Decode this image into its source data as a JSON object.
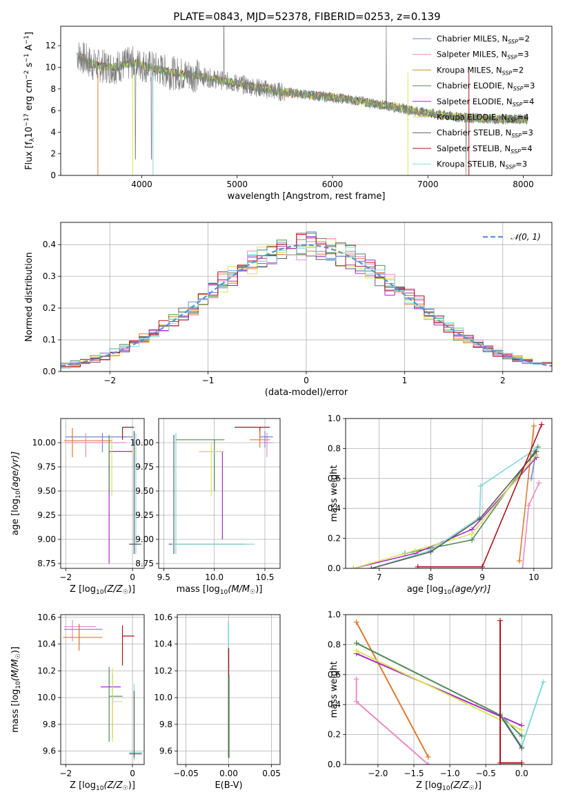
{
  "figure_title": "PLATE=0843, MJD=52378, FIBERID=0253, z=0.139",
  "colors": {
    "Chabrier MILES": "#6f86d6",
    "Salpeter MILES": "#e98ac1",
    "Kroupa MILES": "#c8912c",
    "Chabrier ELODIE": "#4f8a55",
    "Salpeter ELODIE": "#a829c4",
    "Kroupa ELODIE": "#d8e45a",
    "Chabrier STELIB": "#5a5a5a",
    "Salpeter STELIB": "#b0101a",
    "Kroupa STELIB": "#7fd8d8",
    "data": "#7f7f7f",
    "normal": "#5b8fd0",
    "orange": "#e0782e"
  },
  "chart_data": [
    {
      "id": "spectrum",
      "type": "line",
      "xlabel": "wavelength [Angstrom, rest frame]",
      "ylabel": "Flux [f_λ10^-17 erg cm^-2 s^-1 A^-1]",
      "xlim": [
        3150,
        8300
      ],
      "ylim": [
        0,
        13.8
      ],
      "xticks": [
        4000,
        5000,
        6000,
        7000,
        8000
      ],
      "yticks": [
        0,
        2,
        4,
        6,
        8,
        10,
        12
      ],
      "grid": false,
      "legend_position": "top-right",
      "legend": [
        {
          "name": "Chabrier MILES",
          "nssp": "2"
        },
        {
          "name": "Salpeter MILES",
          "nssp": "3"
        },
        {
          "name": "Kroupa MILES",
          "nssp": "2"
        },
        {
          "name": "Chabrier ELODIE",
          "nssp": "3"
        },
        {
          "name": "Salpeter ELODIE",
          "nssp": "4"
        },
        {
          "name": "Kroupa ELODIE",
          "nssp": "4"
        },
        {
          "name": "Chabrier STELIB",
          "nssp": "3"
        },
        {
          "name": "Salpeter STELIB",
          "nssp": "4"
        },
        {
          "name": "Kroupa STELIB",
          "nssp": "3"
        }
      ],
      "continuum": [
        [
          3320,
          11.2
        ],
        [
          3500,
          10.2
        ],
        [
          3700,
          10.0
        ],
        [
          3900,
          10.4
        ],
        [
          4100,
          10.0
        ],
        [
          4300,
          9.5
        ],
        [
          4600,
          9.2
        ],
        [
          5000,
          8.5
        ],
        [
          5400,
          7.8
        ],
        [
          5800,
          7.4
        ],
        [
          6200,
          7.0
        ],
        [
          6600,
          6.4
        ],
        [
          6900,
          5.9
        ],
        [
          7300,
          5.4
        ],
        [
          7700,
          5.2
        ],
        [
          8050,
          5.2
        ]
      ]
    },
    {
      "id": "residuals",
      "type": "line",
      "xlabel": "(data-model)/error",
      "ylabel": "Normed distribution",
      "xlim": [
        -2.5,
        2.5
      ],
      "ylim": [
        0,
        0.47
      ],
      "xticks": [
        -2,
        -1,
        0,
        1,
        2
      ],
      "yticks": [
        0.0,
        0.1,
        0.2,
        0.3,
        0.4
      ],
      "grid": true,
      "legend_position": "top-right",
      "legend_label": "𝒩(0, 1)"
    },
    {
      "id": "age_vs_Z",
      "type": "scatter",
      "xlabel": "Z [log10(Z/Z☉)]",
      "ylabel": "age [log10(age/yr)]",
      "xlim": [
        -2.15,
        0.35
      ],
      "ylim": [
        8.7,
        10.25
      ],
      "xticks": [
        -2,
        0
      ],
      "yticks": [
        8.75,
        9.0,
        9.25,
        9.5,
        9.75,
        10.0
      ],
      "grid": true,
      "points": [
        {
          "series": "Chabrier MILES",
          "x": -0.9,
          "y": 10.06,
          "xe": [
            -2.0,
            0.0
          ],
          "ye": [
            9.9,
            10.1
          ]
        },
        {
          "series": "Kroupa MILES",
          "x": -1.8,
          "y": 10.02,
          "xe": [
            -2.05,
            -0.6
          ],
          "ye": [
            9.85,
            10.15
          ]
        },
        {
          "series": "Salpeter MILES",
          "x": -1.4,
          "y": 10.0,
          "xe": [
            -2.02,
            -0.2
          ],
          "ye": [
            9.85,
            10.1
          ]
        },
        {
          "series": "Salpeter STELIB",
          "x": -0.3,
          "y": 10.16,
          "xe": [
            -0.3,
            0.05
          ],
          "ye": [
            10.03,
            10.16
          ]
        },
        {
          "series": "Salpeter ELODIE",
          "x": -0.7,
          "y": 9.91,
          "xe": [
            -0.7,
            0.0
          ],
          "ye": [
            8.75,
            9.91
          ]
        },
        {
          "series": "Chabrier ELODIE",
          "x": -0.7,
          "y": 9.91,
          "xe": [
            -0.7,
            -0.7
          ],
          "ye": [
            9.5,
            10.08
          ]
        },
        {
          "series": "Kroupa ELODIE",
          "x": -0.62,
          "y": 9.91,
          "xe": [
            -0.62,
            -0.62
          ],
          "ye": [
            9.45,
            10.05
          ]
        },
        {
          "series": "Kroupa STELIB",
          "x": 0.1,
          "y": 8.95,
          "xe": [
            -0.1,
            0.3
          ],
          "ye": [
            8.85,
            10.1
          ]
        },
        {
          "series": "Chabrier STELIB",
          "x": 0.05,
          "y": 8.95,
          "xe": [
            -0.1,
            0.25
          ],
          "ye": [
            8.85,
            10.12
          ]
        }
      ]
    },
    {
      "id": "age_vs_mass",
      "type": "scatter",
      "xlabel": "mass [log10(M/M☉)]",
      "ylabel": "",
      "xlim": [
        9.45,
        10.65
      ],
      "ylim": [
        8.7,
        10.25
      ],
      "xticks": [
        9.5,
        10.0,
        10.5
      ],
      "yticks": [
        8.75,
        9.0,
        9.25,
        9.5,
        9.75,
        10.0
      ],
      "grid": true,
      "points": [
        {
          "series": "Chabrier STELIB",
          "x": 9.6,
          "y": 8.95,
          "xe": [
            9.55,
            10.3
          ],
          "ye": [
            8.85,
            10.08
          ]
        },
        {
          "series": "Kroupa STELIB",
          "x": 9.62,
          "y": 8.95,
          "xe": [
            9.58,
            10.4
          ],
          "ye": [
            8.85,
            10.1
          ]
        },
        {
          "series": "Chabrier ELODIE",
          "x": 10.0,
          "y": 10.03,
          "xe": [
            9.62,
            10.1
          ],
          "ye": [
            9.5,
            10.03
          ]
        },
        {
          "series": "Salpeter ELODIE",
          "x": 10.08,
          "y": 9.91,
          "xe": [
            9.85,
            10.08
          ],
          "ye": [
            9.0,
            9.91
          ]
        },
        {
          "series": "Kroupa ELODIE",
          "x": 9.97,
          "y": 9.91,
          "xe": [
            9.85,
            10.1
          ],
          "ye": [
            9.45,
            10.0
          ]
        },
        {
          "series": "Salpeter STELIB",
          "x": 10.45,
          "y": 10.16,
          "xe": [
            10.2,
            10.55
          ],
          "ye": [
            10.05,
            10.16
          ]
        },
        {
          "series": "Kroupa MILES",
          "x": 10.45,
          "y": 10.03,
          "xe": [
            10.35,
            10.55
          ],
          "ye": [
            9.95,
            10.12
          ]
        },
        {
          "series": "Salpeter MILES",
          "x": 10.52,
          "y": 10.0,
          "xe": [
            10.45,
            10.58
          ],
          "ye": [
            9.85,
            10.1
          ]
        },
        {
          "series": "Chabrier MILES",
          "x": 10.5,
          "y": 10.06,
          "xe": [
            10.45,
            10.58
          ],
          "ye": [
            9.95,
            10.12
          ]
        }
      ]
    },
    {
      "id": "mass_weight_vs_age",
      "type": "line",
      "xlabel": "age [log10(age/yr)]",
      "ylabel": "mass weight",
      "xlim": [
        6.35,
        10.35
      ],
      "ylim": [
        0,
        1.0
      ],
      "xticks": [
        7,
        8,
        9,
        10
      ],
      "yticks": [
        0.0,
        0.2,
        0.4,
        0.6,
        0.8,
        1.0
      ],
      "grid": true,
      "series": [
        {
          "name": "Kroupa MILES",
          "points": [
            [
              9.72,
              0.05
            ],
            [
              10.0,
              0.95
            ]
          ]
        },
        {
          "name": "Salpeter MILES",
          "points": [
            [
              9.78,
              0.0
            ],
            [
              9.9,
              0.42
            ],
            [
              10.1,
              0.57
            ]
          ]
        },
        {
          "name": "Chabrier MILES",
          "points": [
            [
              9.95,
              0.6
            ],
            [
              10.03,
              0.75
            ]
          ]
        },
        {
          "name": "Chabrier ELODIE",
          "points": [
            [
              7.5,
              0.1
            ],
            [
              8.8,
              0.19
            ],
            [
              10.08,
              0.81
            ]
          ]
        },
        {
          "name": "Salpeter ELODIE",
          "points": [
            [
              6.5,
              0.0
            ],
            [
              7.7,
              0.1
            ],
            [
              8.8,
              0.26
            ],
            [
              10.05,
              0.74
            ]
          ]
        },
        {
          "name": "Kroupa ELODIE",
          "points": [
            [
              6.5,
              0.0
            ],
            [
              7.7,
              0.12
            ],
            [
              8.8,
              0.23
            ],
            [
              10.05,
              0.76
            ]
          ]
        },
        {
          "name": "Kroupa STELIB",
          "points": [
            [
              6.85,
              0.0
            ],
            [
              8.0,
              0.12
            ],
            [
              8.95,
              0.34
            ],
            [
              8.97,
              0.55
            ],
            [
              10.05,
              0.8
            ]
          ]
        },
        {
          "name": "Chabrier STELIB",
          "points": [
            [
              6.85,
              0.0
            ],
            [
              8.0,
              0.11
            ],
            [
              8.95,
              0.33
            ],
            [
              10.05,
              0.78
            ]
          ]
        },
        {
          "name": "Salpeter STELIB",
          "points": [
            [
              7.75,
              0.01
            ],
            [
              9.0,
              0.01
            ],
            [
              10.15,
              0.96
            ]
          ]
        }
      ]
    },
    {
      "id": "mass_vs_Z",
      "type": "scatter",
      "xlabel": "Z [log10(Z/Z☉)]",
      "ylabel": "mass [log10(M/M☉)]",
      "xlim": [
        -2.15,
        0.35
      ],
      "ylim": [
        9.5,
        10.62
      ],
      "xticks": [
        -2,
        0
      ],
      "yticks": [
        9.6,
        9.8,
        10.0,
        10.2,
        10.4,
        10.6
      ],
      "grid": true,
      "points": [
        {
          "series": "Salpeter MILES",
          "x": -1.8,
          "y": 10.53,
          "xe": [
            -2.05,
            -1.1
          ],
          "ye": [
            10.42,
            10.58
          ]
        },
        {
          "series": "Chabrier MILES",
          "x": -1.6,
          "y": 10.51,
          "xe": [
            -2.05,
            -0.9
          ],
          "ye": [
            10.4,
            10.55
          ]
        },
        {
          "series": "Kroupa MILES",
          "x": -1.6,
          "y": 10.45,
          "xe": [
            -2.08,
            -0.9
          ],
          "ye": [
            10.35,
            10.55
          ]
        },
        {
          "series": "Salpeter STELIB",
          "x": -0.3,
          "y": 10.46,
          "xe": [
            -0.3,
            0.05
          ],
          "ye": [
            10.24,
            10.54
          ]
        },
        {
          "series": "Salpeter ELODIE",
          "x": -0.6,
          "y": 10.08,
          "xe": [
            -0.95,
            -0.35
          ],
          "ye": [
            9.7,
            10.18
          ]
        },
        {
          "series": "Chabrier ELODIE",
          "x": -0.7,
          "y": 10.01,
          "xe": [
            -0.7,
            -0.3
          ],
          "ye": [
            9.67,
            10.23
          ]
        },
        {
          "series": "Kroupa ELODIE",
          "x": -0.6,
          "y": 9.97,
          "xe": [
            -0.6,
            -0.3
          ],
          "ye": [
            9.67,
            10.22
          ]
        },
        {
          "series": "Kroupa STELIB",
          "x": 0.05,
          "y": 9.59,
          "xe": [
            -0.1,
            0.3
          ],
          "ye": [
            9.53,
            10.1
          ]
        },
        {
          "series": "Chabrier STELIB",
          "x": 0.05,
          "y": 9.58,
          "xe": [
            -0.1,
            0.28
          ],
          "ye": [
            9.55,
            10.05
          ]
        }
      ]
    },
    {
      "id": "mass_vs_ebv",
      "type": "scatter",
      "xlabel": "E(B-V)",
      "ylabel": "",
      "xlim": [
        -0.06,
        0.06
      ],
      "ylim": [
        9.5,
        10.62
      ],
      "xticks": [
        -0.05,
        0.0,
        0.05
      ],
      "yticks": [
        9.6,
        9.8,
        10.0,
        10.2,
        10.4,
        10.6
      ],
      "grid": true,
      "segment": {
        "x": 0.0,
        "y_range": [
          9.55,
          10.57
        ]
      }
    },
    {
      "id": "mass_weight_vs_Z",
      "type": "line",
      "xlabel": "Z [log10(Z/Z☉)]",
      "ylabel": "mass weight",
      "xlim": [
        -2.45,
        0.42
      ],
      "ylim": [
        0,
        1.0
      ],
      "xticks": [
        -2.0,
        -1.5,
        -1.0,
        -0.5,
        0.0
      ],
      "yticks": [
        0.0,
        0.2,
        0.4,
        0.6,
        0.8,
        1.0
      ],
      "grid": true,
      "series": [
        {
          "name": "Kroupa MILES",
          "points": [
            [
              -2.3,
              0.95
            ],
            [
              -1.3,
              0.05
            ]
          ]
        },
        {
          "name": "Salpeter MILES",
          "points": [
            [
              -2.3,
              0.57
            ],
            [
              -2.3,
              0.42
            ],
            [
              -1.3,
              0.0
            ]
          ]
        },
        {
          "name": "Chabrier ELODIE",
          "points": [
            [
              -2.3,
              0.81
            ],
            [
              -0.3,
              0.33
            ],
            [
              0.0,
              0.19
            ]
          ]
        },
        {
          "name": "Salpeter ELODIE",
          "points": [
            [
              -2.3,
              0.74
            ],
            [
              0.0,
              0.26
            ]
          ]
        },
        {
          "name": "Kroupa ELODIE",
          "points": [
            [
              -2.3,
              0.76
            ],
            [
              0.0,
              0.23
            ]
          ]
        },
        {
          "name": "Kroupa STELIB",
          "points": [
            [
              -0.3,
              0.34
            ],
            [
              0.0,
              0.12
            ],
            [
              0.3,
              0.55
            ]
          ]
        },
        {
          "name": "Chabrier STELIB",
          "points": [
            [
              -0.3,
              0.33
            ],
            [
              0.0,
              0.11
            ]
          ]
        },
        {
          "name": "Salpeter STELIB",
          "points": [
            [
              -0.3,
              0.96
            ],
            [
              -0.3,
              0.01
            ],
            [
              0.0,
              0.01
            ]
          ]
        }
      ]
    }
  ]
}
